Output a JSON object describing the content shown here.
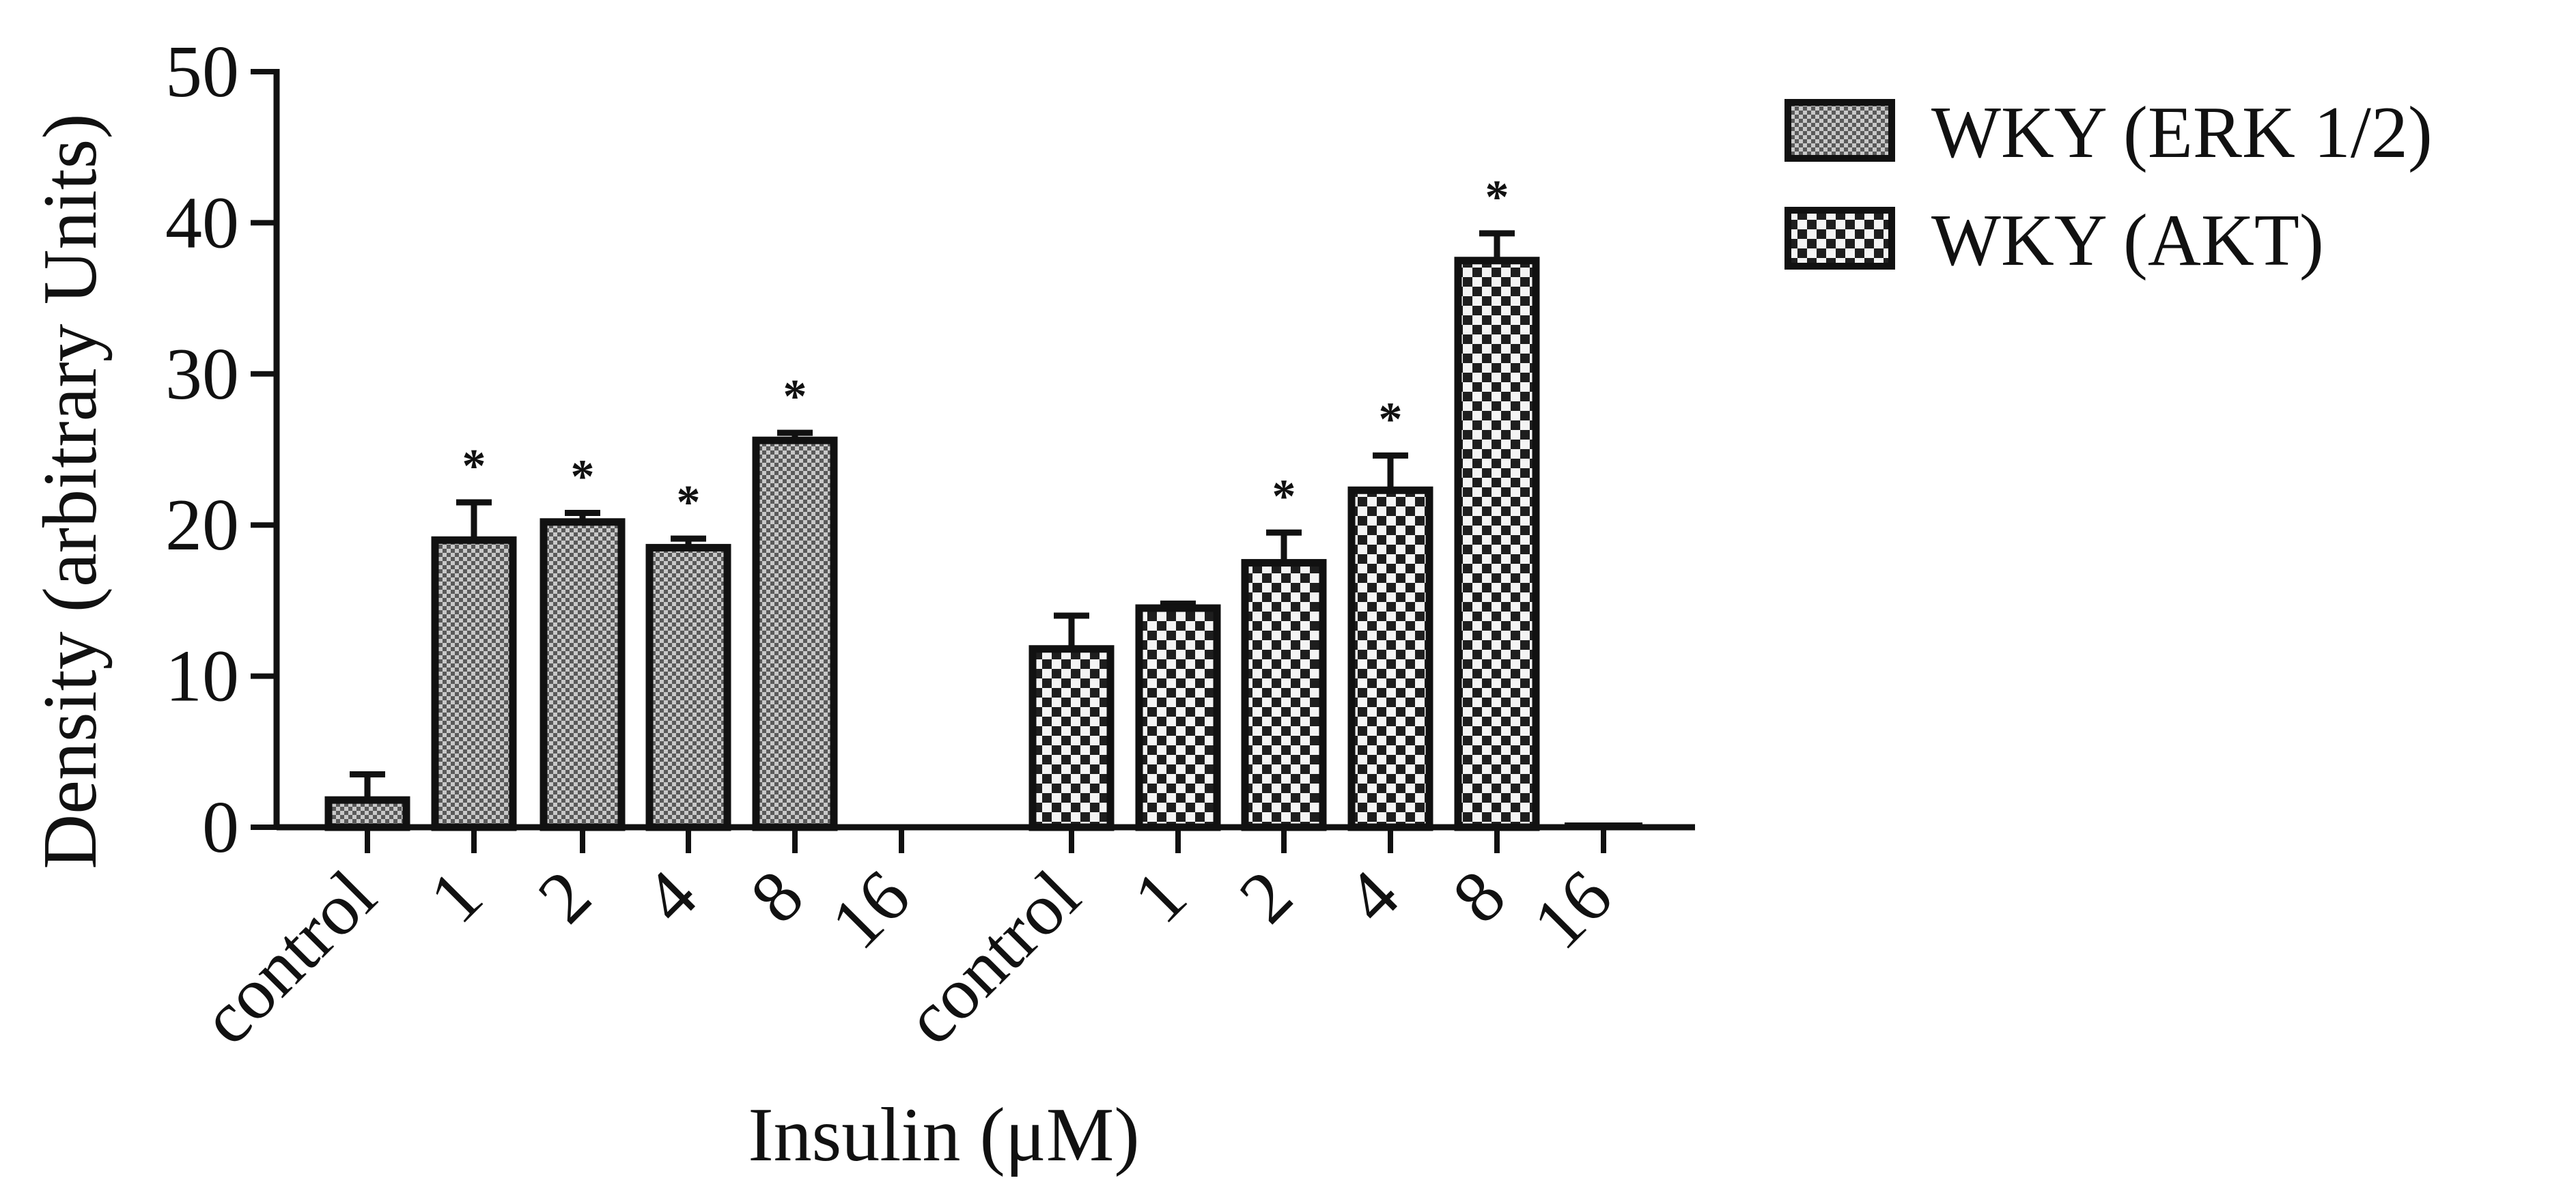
{
  "chart_data": {
    "type": "bar",
    "xlabel": "Insulin (μM)",
    "ylabel": "Density (arbitrary Units)",
    "ylim": [
      0,
      50
    ],
    "yticks": [
      "0",
      "10",
      "20",
      "30",
      "40",
      "50"
    ],
    "grid": false,
    "legend_position": "top-right",
    "categories": [
      "control",
      "1",
      "2",
      "4",
      "8",
      "16"
    ],
    "series": [
      {
        "name": "WKY (ERK 1/2)",
        "pattern": "fine-checker",
        "colors": {
          "light": "#c8c8c8",
          "dark": "#5a5a5a"
        },
        "values": [
          1.8,
          19.0,
          20.2,
          18.5,
          25.6,
          0
        ],
        "errors": [
          1.7,
          2.5,
          0.6,
          0.6,
          0.5,
          0
        ],
        "significant": [
          false,
          true,
          true,
          true,
          true,
          false
        ]
      },
      {
        "name": "WKY (AKT)",
        "pattern": "coarse-checker",
        "colors": {
          "light": "#f4f4f4",
          "dark": "#1e1e1e"
        },
        "values": [
          11.8,
          14.5,
          17.5,
          22.3,
          37.5,
          0
        ],
        "errors": [
          2.2,
          0.3,
          2.0,
          2.3,
          1.8,
          0
        ],
        "significant": [
          false,
          false,
          true,
          true,
          true,
          false
        ]
      }
    ],
    "significance_marker": "*"
  }
}
